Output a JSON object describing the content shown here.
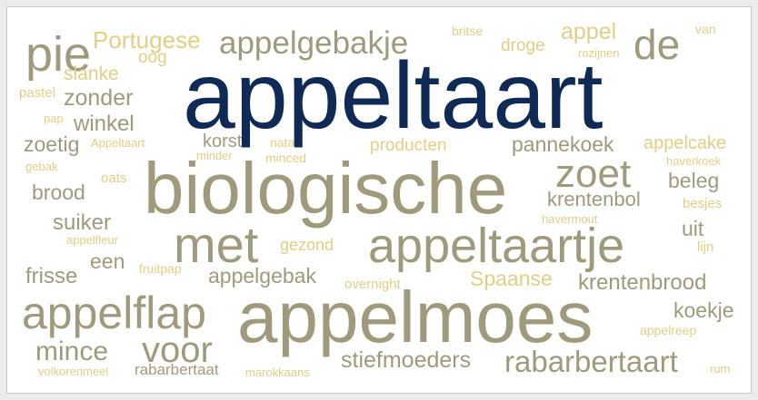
{
  "colors": {
    "navy": "#0f2a55",
    "gray": "#a09a7c",
    "gold": "#e2ce85",
    "background": "#ffffff"
  },
  "words": [
    {
      "text": "appeltaart",
      "color": "navy"
    },
    {
      "text": "biologische",
      "color": "gray"
    },
    {
      "text": "appelmoes",
      "color": "gray"
    },
    {
      "text": "appeltaartje",
      "color": "gray"
    },
    {
      "text": "met",
      "color": "gray"
    },
    {
      "text": "appelflap",
      "color": "gray"
    },
    {
      "text": "pie",
      "color": "gray"
    },
    {
      "text": "de",
      "color": "gray"
    },
    {
      "text": "zoet",
      "color": "gray"
    },
    {
      "text": "voor",
      "color": "gray"
    },
    {
      "text": "appelgebakje",
      "color": "gray"
    },
    {
      "text": "rabarbertaart",
      "color": "gray"
    },
    {
      "text": "mince",
      "color": "gray"
    },
    {
      "text": "stiefmoeders",
      "color": "gray"
    },
    {
      "text": "krentenbrood",
      "color": "gray"
    },
    {
      "text": "pannekoek",
      "color": "gray"
    },
    {
      "text": "koekje",
      "color": "gray"
    },
    {
      "text": "Portugese",
      "color": "gold"
    },
    {
      "text": "appel",
      "color": "gold"
    },
    {
      "text": "droge",
      "color": "gold"
    },
    {
      "text": "britse",
      "color": "gold"
    },
    {
      "text": "van",
      "color": "gold"
    },
    {
      "text": "rozijnen",
      "color": "gold"
    },
    {
      "text": "oog",
      "color": "gold"
    },
    {
      "text": "slanke",
      "color": "gold"
    },
    {
      "text": "pastel",
      "color": "gold"
    },
    {
      "text": "zonder",
      "color": "gray"
    },
    {
      "text": "pap",
      "color": "gold"
    },
    {
      "text": "winkel",
      "color": "gray"
    },
    {
      "text": "zoetig",
      "color": "gray"
    },
    {
      "text": "Appeltaart",
      "color": "gold"
    },
    {
      "text": "korst",
      "color": "gray"
    },
    {
      "text": "nata",
      "color": "gold"
    },
    {
      "text": "producten",
      "color": "gold"
    },
    {
      "text": "minder",
      "color": "gold"
    },
    {
      "text": "minced",
      "color": "gold"
    },
    {
      "text": "appelcake",
      "color": "gold"
    },
    {
      "text": "haverkoek",
      "color": "gold"
    },
    {
      "text": "gebak",
      "color": "gold"
    },
    {
      "text": "oats",
      "color": "gold"
    },
    {
      "text": "beleg",
      "color": "gray"
    },
    {
      "text": "brood",
      "color": "gray"
    },
    {
      "text": "krentenbol",
      "color": "gray"
    },
    {
      "text": "besjes",
      "color": "gold"
    },
    {
      "text": "suiker",
      "color": "gray"
    },
    {
      "text": "havermout",
      "color": "gold"
    },
    {
      "text": "appelfleur",
      "color": "gold"
    },
    {
      "text": "uit",
      "color": "gray"
    },
    {
      "text": "gezond",
      "color": "gold"
    },
    {
      "text": "lijn",
      "color": "gold"
    },
    {
      "text": "een",
      "color": "gray"
    },
    {
      "text": "fruitpap",
      "color": "gold"
    },
    {
      "text": "frisse",
      "color": "gray"
    },
    {
      "text": "appelgebak",
      "color": "gray"
    },
    {
      "text": "overnight",
      "color": "gold"
    },
    {
      "text": "Spaanse",
      "color": "gold"
    },
    {
      "text": "appelreep",
      "color": "gold"
    },
    {
      "text": "volkorenmeel",
      "color": "gold"
    },
    {
      "text": "rabarbertaat",
      "color": "gray"
    },
    {
      "text": "marokkaans",
      "color": "gold"
    },
    {
      "text": "rum",
      "color": "gold"
    }
  ]
}
